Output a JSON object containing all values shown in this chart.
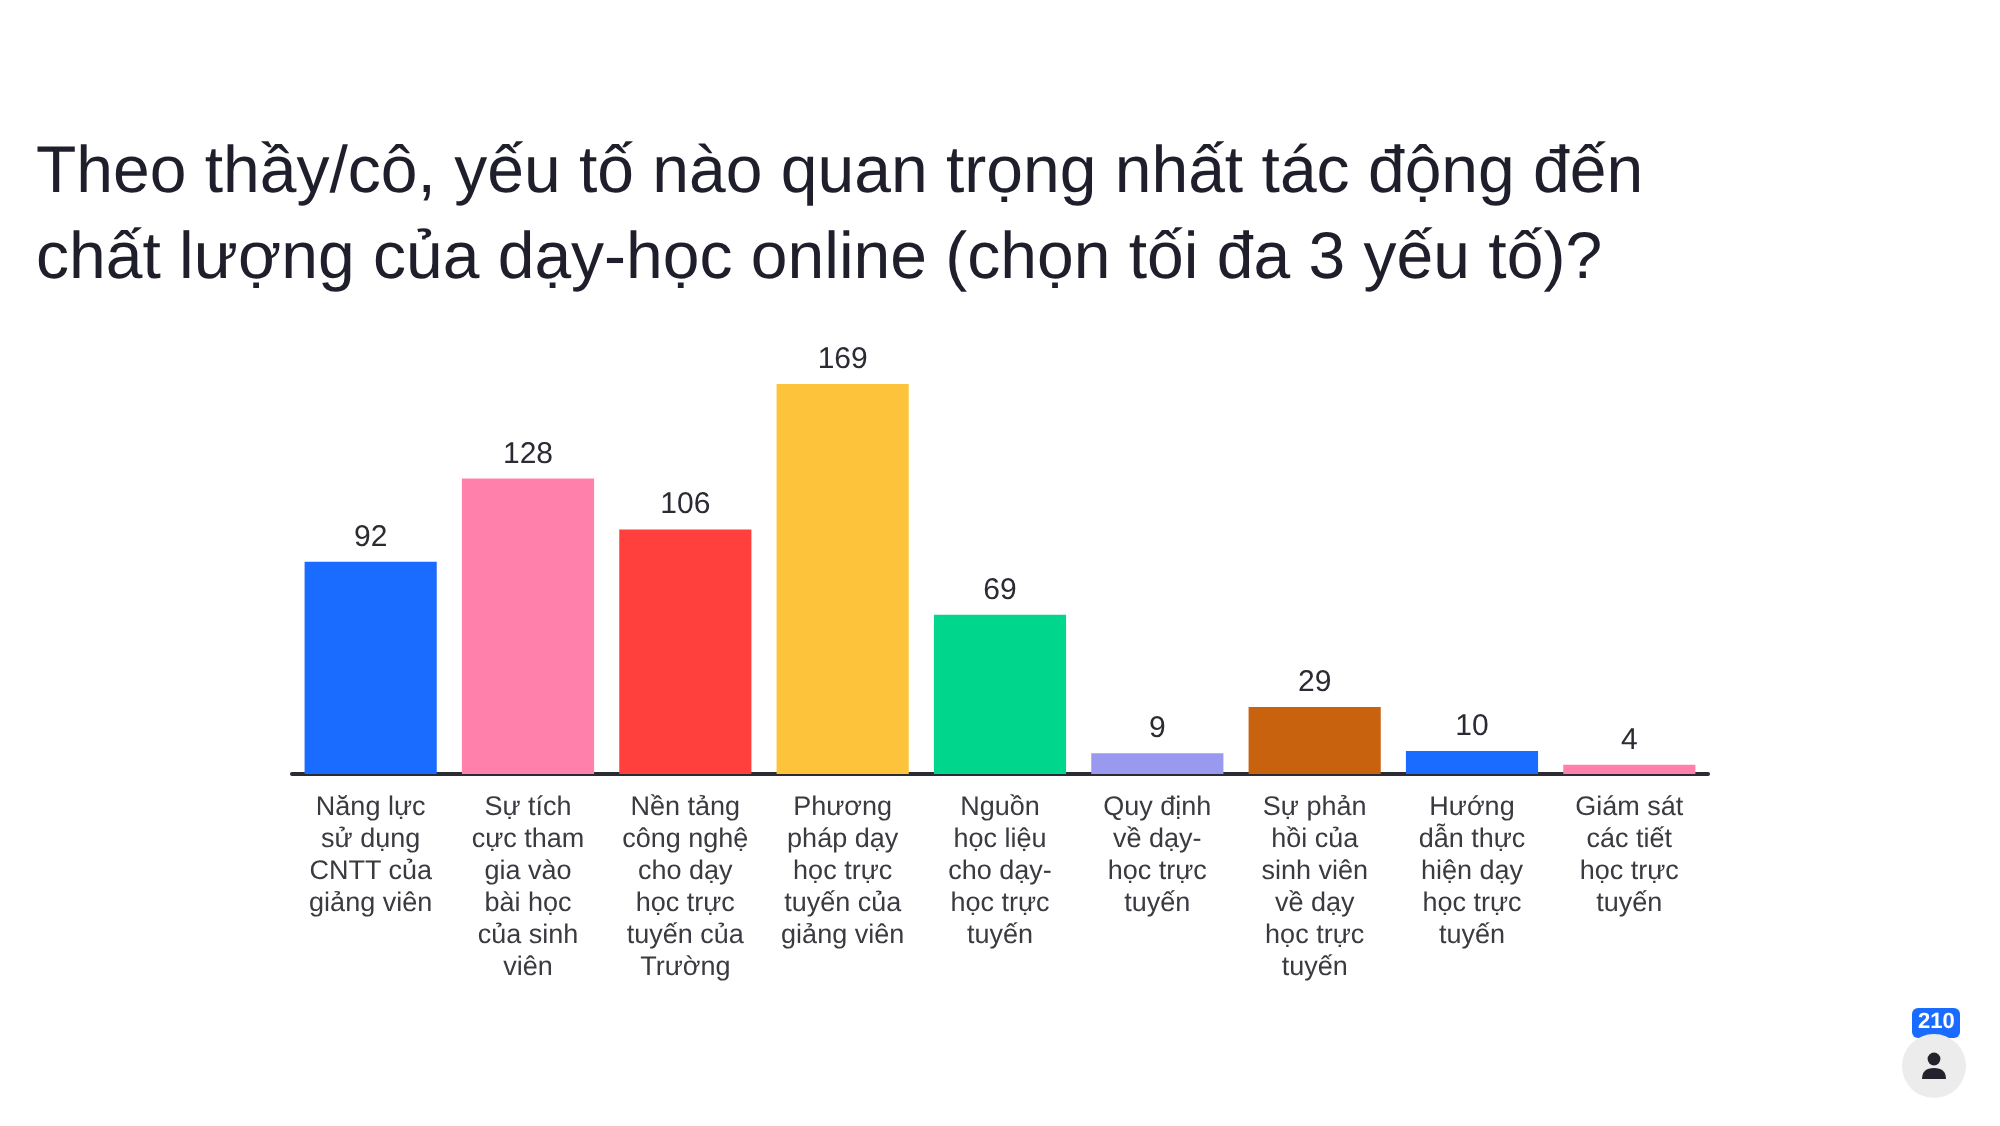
{
  "chart_data": {
    "type": "bar",
    "title": "Theo thầy/cô, yếu tố nào quan trọng nhất tác động đến chất lượng của dạy-học online (chọn tối đa 3 yếu tố)?",
    "categories": [
      "Năng lực sử dụng CNTT của giảng viên",
      "Sự tích cực tham gia vào bài học của sinh viên",
      "Nền tảng công nghệ cho dạy học trực tuyến của Trường",
      "Phương pháp dạy học trực tuyến của giảng viên",
      "Nguồn học liệu cho dạy-học trực tuyến",
      "Quy định về dạy-học trực tuyến",
      "Sự phản hồi của sinh viên về dạy học trực tuyến",
      "Hướng dẫn thực hiện dạy học trực tuyến",
      "Giám sát các tiết học trực tuyến"
    ],
    "values": [
      92,
      128,
      106,
      169,
      69,
      9,
      29,
      10,
      4
    ],
    "colors": [
      "#196cff",
      "#ff80ab",
      "#ff403d",
      "#fdc43b",
      "#00d68c",
      "#9a99f0",
      "#c8620f",
      "#196cff",
      "#ff80ab"
    ],
    "data_labels": true,
    "annotations": [
      "210"
    ]
  }
}
